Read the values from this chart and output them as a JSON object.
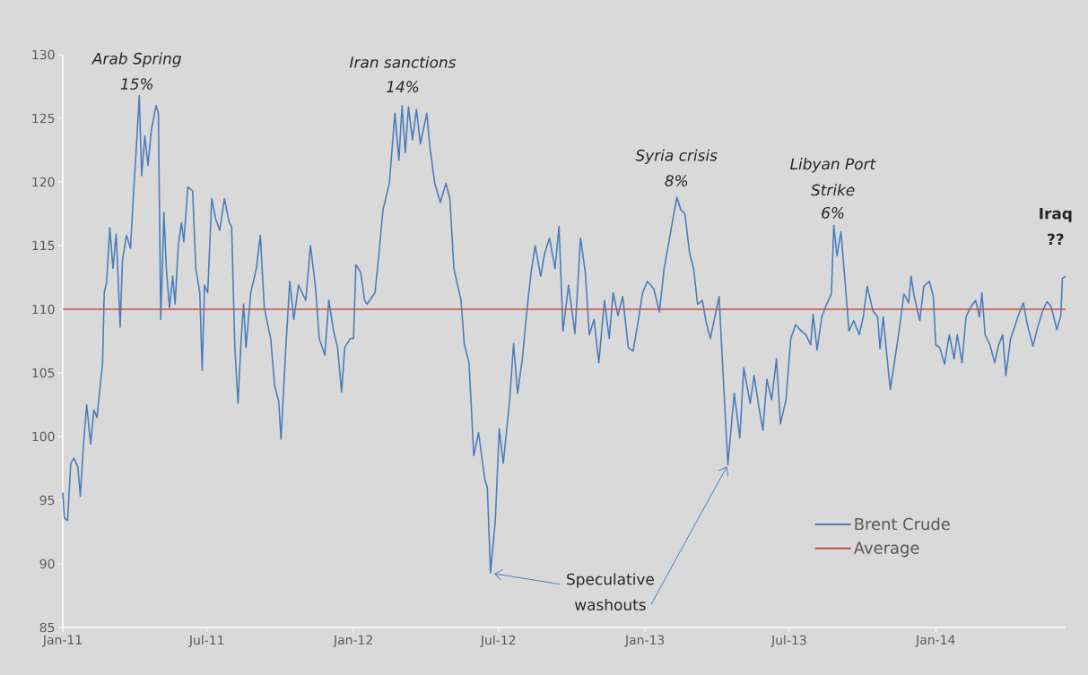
{
  "chart_data": {
    "type": "line",
    "xlim": [
      "2011-01-01",
      "2014-06-13"
    ],
    "xticks": [
      {
        "value": "2011-01-01",
        "label": "Jan-11"
      },
      {
        "value": "2011-07-01",
        "label": "Jul-11"
      },
      {
        "value": "2012-01-01",
        "label": "Jan-12"
      },
      {
        "value": "2012-07-01",
        "label": "Jul-12"
      },
      {
        "value": "2013-01-01",
        "label": "Jan-13"
      },
      {
        "value": "2013-07-01",
        "label": "Jul-13"
      },
      {
        "value": "2014-01-01",
        "label": "Jan-14"
      }
    ],
    "ylim": [
      85,
      130
    ],
    "yticks": [
      85,
      90,
      95,
      100,
      105,
      110,
      115,
      120,
      125,
      130
    ],
    "grid": false,
    "legend": "bottom right",
    "series": [
      {
        "name": "Brent Crude",
        "color": "#4a7ebb",
        "x": [
          "2011-01-01",
          "2011-01-03",
          "2011-01-07",
          "2011-01-11",
          "2011-01-15",
          "2011-01-20",
          "2011-01-23",
          "2011-01-27",
          "2011-01-31",
          "2011-02-05",
          "2011-02-09",
          "2011-02-13",
          "2011-02-17",
          "2011-02-20",
          "2011-02-22",
          "2011-02-25",
          "2011-03-01",
          "2011-03-05",
          "2011-03-09",
          "2011-03-11",
          "2011-03-14",
          "2011-03-17",
          "2011-03-22",
          "2011-03-27",
          "2011-03-31",
          "2011-04-03",
          "2011-04-07",
          "2011-04-10",
          "2011-04-14",
          "2011-04-18",
          "2011-04-22",
          "2011-04-28",
          "2011-05-01",
          "2011-05-04",
          "2011-05-08",
          "2011-05-11",
          "2011-05-15",
          "2011-05-19",
          "2011-05-22",
          "2011-05-26",
          "2011-05-30",
          "2011-06-02",
          "2011-06-07",
          "2011-06-13",
          "2011-06-17",
          "2011-06-22",
          "2011-06-25",
          "2011-06-28",
          "2011-07-02",
          "2011-07-07",
          "2011-07-12",
          "2011-07-17",
          "2011-07-23",
          "2011-07-29",
          "2011-08-01",
          "2011-08-05",
          "2011-08-09",
          "2011-08-13",
          "2011-08-16",
          "2011-08-19",
          "2011-08-25",
          "2011-09-01",
          "2011-09-06",
          "2011-09-11",
          "2011-09-19",
          "2011-09-24",
          "2011-09-29",
          "2011-10-02",
          "2011-10-08",
          "2011-10-13",
          "2011-10-18",
          "2011-10-24",
          "2011-11-02",
          "2011-11-08",
          "2011-11-14",
          "2011-11-19",
          "2011-11-26",
          "2011-12-01",
          "2011-12-07",
          "2011-12-12",
          "2011-12-17",
          "2011-12-21",
          "2011-12-28",
          "2012-01-01",
          "2012-01-04",
          "2012-01-10",
          "2012-01-15",
          "2012-01-18",
          "2012-01-28",
          "2012-02-02",
          "2012-02-07",
          "2012-02-15",
          "2012-02-22",
          "2012-02-27",
          "2012-03-02",
          "2012-03-06",
          "2012-03-10",
          "2012-03-15",
          "2012-03-20",
          "2012-03-25",
          "2012-04-02",
          "2012-04-06",
          "2012-04-12",
          "2012-04-19",
          "2012-04-26",
          "2012-05-01",
          "2012-05-06",
          "2012-05-15",
          "2012-05-19",
          "2012-05-25",
          "2012-05-31",
          "2012-06-06",
          "2012-06-14",
          "2012-06-17",
          "2012-06-21",
          "2012-06-27",
          "2012-07-02",
          "2012-07-07",
          "2012-07-15",
          "2012-07-20",
          "2012-07-25",
          "2012-07-31",
          "2012-08-06",
          "2012-08-11",
          "2012-08-16",
          "2012-08-23",
          "2012-08-28",
          "2012-09-03",
          "2012-09-10",
          "2012-09-15",
          "2012-09-20",
          "2012-09-27",
          "2012-10-05",
          "2012-10-12",
          "2012-10-18",
          "2012-10-23",
          "2012-10-29",
          "2012-11-04",
          "2012-11-11",
          "2012-11-17",
          "2012-11-22",
          "2012-11-28",
          "2012-12-04",
          "2012-12-11",
          "2012-12-17",
          "2012-12-23",
          "2012-12-29",
          "2013-01-04",
          "2013-01-12",
          "2013-01-19",
          "2013-01-25",
          "2013-01-31",
          "2013-02-05",
          "2013-02-10",
          "2013-02-15",
          "2013-02-20",
          "2013-02-26",
          "2013-03-03",
          "2013-03-08",
          "2013-03-14",
          "2013-03-19",
          "2013-03-24",
          "2013-03-30",
          "2013-04-04",
          "2013-04-08",
          "2013-04-15",
          "2013-04-23",
          "2013-04-30",
          "2013-05-05",
          "2013-05-13",
          "2013-05-18",
          "2013-05-24",
          "2013-05-29",
          "2013-06-03",
          "2013-06-09",
          "2013-06-15",
          "2013-06-20",
          "2013-06-27",
          "2013-07-03",
          "2013-07-09",
          "2013-07-16",
          "2013-07-22",
          "2013-07-28",
          "2013-07-31",
          "2013-08-05",
          "2013-08-11",
          "2013-08-17",
          "2013-08-23",
          "2013-08-26",
          "2013-08-30",
          "2013-09-04",
          "2013-09-10",
          "2013-09-14",
          "2013-09-20",
          "2013-09-27",
          "2013-10-02",
          "2013-10-07",
          "2013-10-14",
          "2013-10-20",
          "2013-10-23",
          "2013-10-27",
          "2013-11-01",
          "2013-11-05",
          "2013-11-10",
          "2013-11-16",
          "2013-11-22",
          "2013-11-28",
          "2013-12-01",
          "2013-12-05",
          "2013-12-12",
          "2013-12-17",
          "2013-12-24",
          "2013-12-29",
          "2014-01-01",
          "2014-01-06",
          "2014-01-12",
          "2014-01-18",
          "2014-01-24",
          "2014-01-28",
          "2014-02-03",
          "2014-02-08",
          "2014-02-14",
          "2014-02-20",
          "2014-02-25",
          "2014-02-28",
          "2014-03-04",
          "2014-03-10",
          "2014-03-16",
          "2014-03-21",
          "2014-03-26",
          "2014-03-30",
          "2014-04-05",
          "2014-04-10",
          "2014-04-14",
          "2014-04-21",
          "2014-04-26",
          "2014-05-03",
          "2014-05-09",
          "2014-05-16",
          "2014-05-21",
          "2014-05-26",
          "2014-06-02",
          "2014-06-07",
          "2014-06-09",
          "2014-06-13"
        ],
        "values": [
          95.6,
          93.6,
          93.4,
          97.9,
          98.3,
          97.6,
          95.3,
          99.4,
          102.5,
          99.4,
          102.1,
          101.5,
          104.0,
          105.8,
          111.3,
          112.1,
          116.4,
          113.2,
          115.9,
          113.2,
          108.6,
          113.9,
          115.8,
          114.8,
          119.3,
          122.3,
          126.8,
          120.5,
          123.6,
          121.3,
          124.0,
          126.0,
          125.4,
          109.2,
          117.6,
          113.2,
          110.1,
          112.6,
          110.4,
          115.0,
          116.8,
          115.3,
          119.6,
          119.3,
          113.2,
          111.3,
          105.2,
          111.9,
          111.3,
          118.7,
          117.1,
          116.2,
          118.7,
          116.8,
          116.5,
          107.0,
          102.6,
          107.7,
          110.4,
          107.0,
          111.3,
          113.2,
          115.8,
          110.1,
          107.7,
          104.0,
          102.8,
          99.8,
          107.0,
          112.2,
          109.2,
          111.9,
          110.7,
          115.0,
          111.9,
          107.7,
          106.4,
          110.7,
          108.3,
          107.0,
          103.5,
          107.0,
          107.7,
          107.7,
          113.5,
          112.9,
          110.7,
          110.4,
          111.3,
          114.4,
          117.8,
          119.9,
          125.4,
          121.7,
          126.0,
          122.3,
          125.9,
          123.3,
          125.7,
          123.0,
          125.4,
          122.7,
          119.9,
          118.4,
          119.9,
          118.7,
          113.2,
          110.7,
          107.3,
          105.8,
          98.5,
          100.3,
          96.6,
          96.0,
          89.3,
          93.4,
          100.6,
          97.9,
          102.8,
          107.3,
          103.4,
          106.1,
          110.1,
          112.9,
          115.0,
          112.6,
          114.4,
          115.6,
          113.2,
          116.5,
          108.3,
          111.9,
          108.1,
          115.6,
          112.9,
          108.0,
          109.2,
          105.8,
          110.7,
          107.7,
          111.3,
          109.5,
          111.0,
          107.0,
          106.7,
          108.9,
          111.3,
          112.2,
          111.6,
          109.8,
          113.2,
          115.3,
          117.1,
          118.8,
          117.8,
          117.5,
          114.4,
          113.2,
          110.4,
          110.7,
          108.9,
          107.7,
          109.5,
          111.0,
          106.1,
          97.8,
          103.4,
          99.9,
          105.4,
          102.6,
          104.8,
          102.3,
          100.5,
          104.5,
          102.9,
          106.1,
          101.0,
          102.9,
          107.7,
          108.8,
          108.3,
          108.0,
          107.2,
          109.6,
          106.8,
          109.4,
          110.4,
          111.2,
          116.6,
          114.2,
          116.1,
          111.5,
          108.3,
          109.1,
          108.0,
          109.4,
          111.8,
          109.9,
          109.4,
          106.9,
          109.4,
          106.1,
          103.7,
          105.8,
          108.3,
          111.2,
          110.5,
          112.6,
          111.0,
          109.1,
          111.8,
          112.2,
          111.0,
          107.2,
          107.0,
          105.7,
          108.0,
          106.1,
          108.0,
          105.8,
          109.4,
          110.2,
          110.7,
          109.4,
          111.3,
          108.0,
          107.2,
          105.8,
          107.2,
          108.0,
          104.8,
          107.7,
          108.6,
          109.4,
          110.5,
          108.8,
          107.1,
          108.6,
          110.0,
          110.6,
          110.2,
          108.4,
          109.5,
          112.4,
          112.6
        ]
      }
    ],
    "ref_lines": [
      {
        "axis": "y",
        "value": 110,
        "label": "Average",
        "color": "#c0504d"
      }
    ],
    "annotations": [
      "*Arab Spring*",
      "*15%*",
      "*Iran sanctions*",
      "*14%*",
      "*Syria crisis*",
      "*8%*",
      "*Libyan Port*",
      "*Strike*",
      "*6%*",
      "**Iraq**",
      "**??**",
      {
        "text": "Speculative",
        "x": "2012-06-21",
        "y": 89.3
      },
      {
        "text": "washouts",
        "x": "2013-04-15",
        "y": 97.8
      }
    ]
  }
}
